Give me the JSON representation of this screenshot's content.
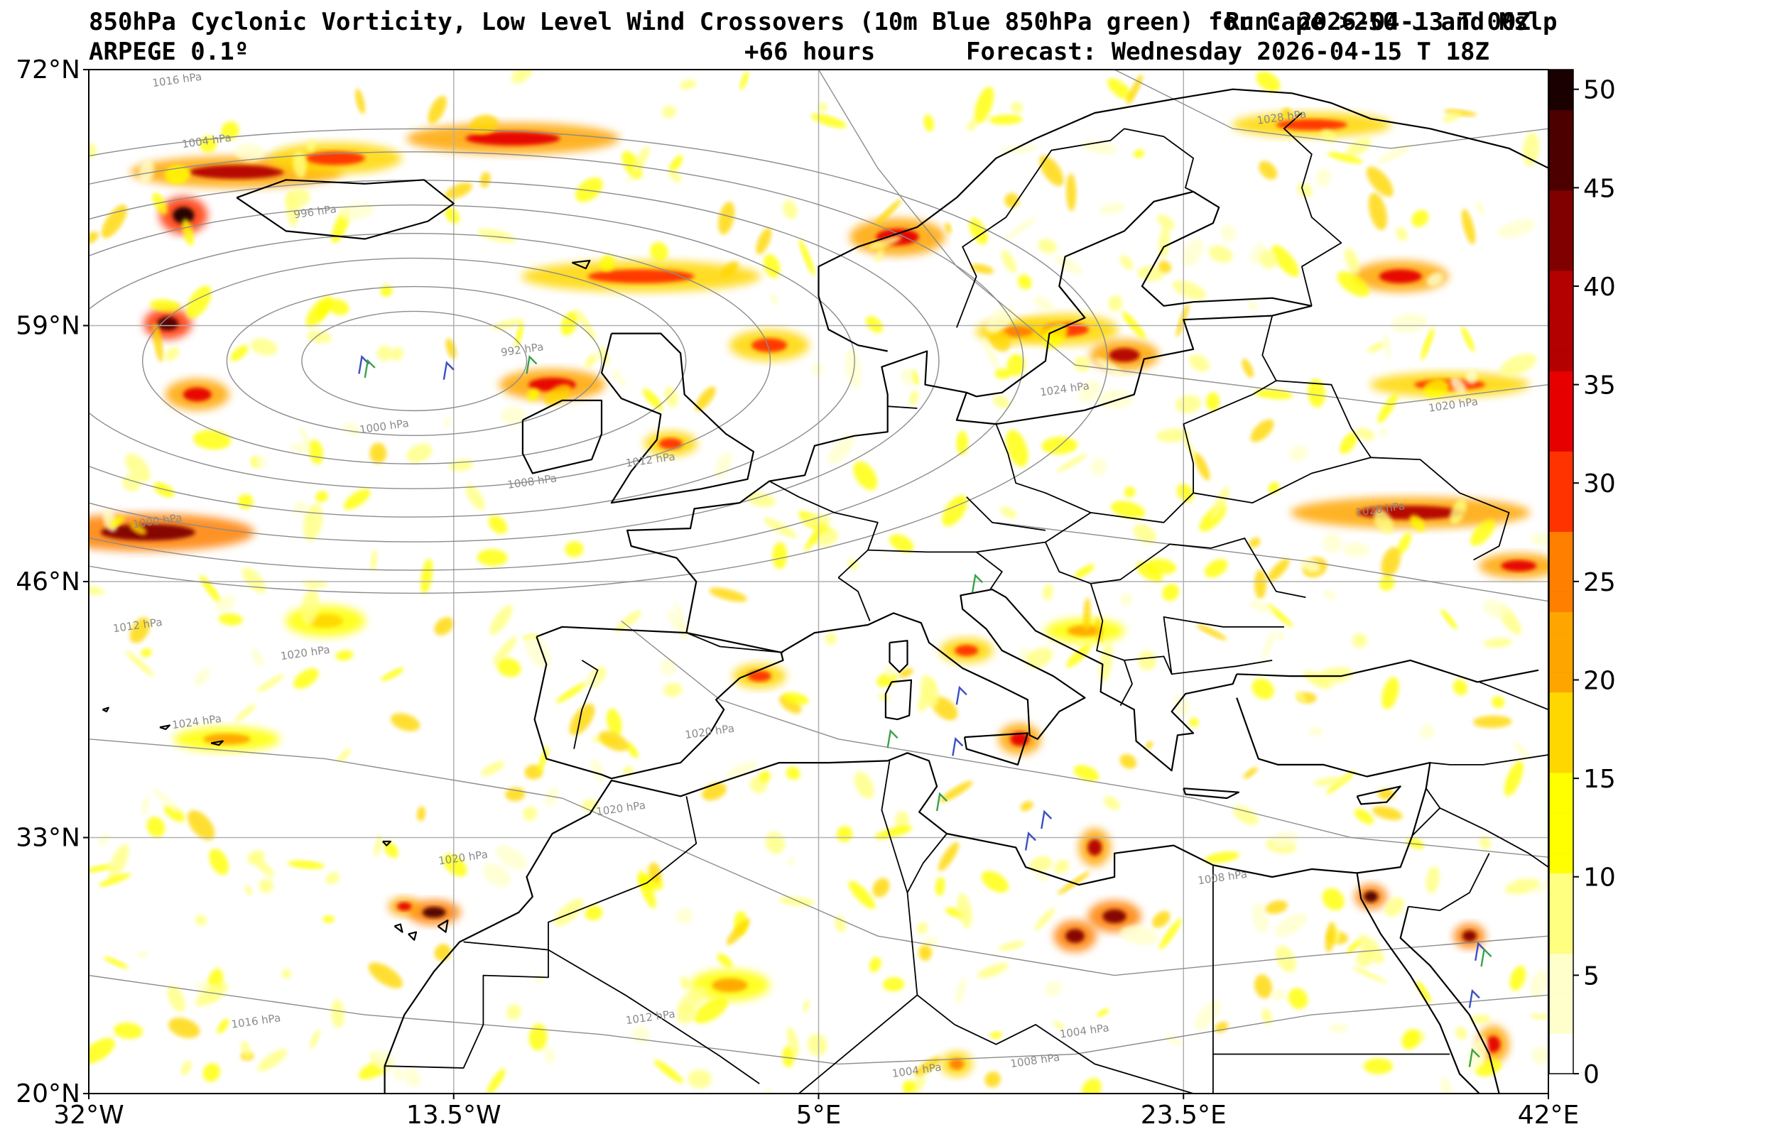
{
  "title": {
    "line1_left": "850hPa Cyclonic Vorticity, Low Level Wind Crossovers (10m Blue 850hPa green) for Cape >250 J and Mslp",
    "line1_right": "Run: 2026-04-13 T 00Z",
    "line2_left": "ARPEGE 0.1º",
    "line2_center": "+66 hours",
    "line2_right": "Forecast: Wednesday 2026-04-15 T 18Z"
  },
  "map": {
    "lon_range": [
      -32,
      42
    ],
    "lat_range": [
      20,
      72
    ],
    "lon_ticks": [
      {
        "value": -32,
        "label": "32°W"
      },
      {
        "value": -13.5,
        "label": "13.5°W"
      },
      {
        "value": 5,
        "label": "5°E"
      },
      {
        "value": 23.5,
        "label": "23.5°E"
      },
      {
        "value": 42,
        "label": "42°E"
      }
    ],
    "lat_ticks": [
      {
        "value": 72,
        "label": "72°N"
      },
      {
        "value": 59,
        "label": "59°N"
      },
      {
        "value": 46,
        "label": "46°N"
      },
      {
        "value": 33,
        "label": "33°N"
      },
      {
        "value": 20,
        "label": "20°N"
      }
    ],
    "grid": true,
    "colors": {
      "grid": "#b0b0b0",
      "coast": "#000000",
      "isobar": "#8c8c8c",
      "wind_10m": "#3a4fc4",
      "wind_850": "#3aa14a"
    },
    "colorbar": {
      "min": 0,
      "max": 51,
      "ticks": [
        0,
        5,
        10,
        15,
        20,
        25,
        30,
        35,
        40,
        45,
        50
      ],
      "colors": [
        "#ffffff",
        "#ffffcc",
        "#ffff80",
        "#ffff00",
        "#ffd700",
        "#ffa500",
        "#ff7f00",
        "#ff3300",
        "#e60000",
        "#b30000",
        "#800000",
        "#4d0000",
        "#1a0000"
      ]
    },
    "isobar_labels": [
      {
        "text": "1016 hPa",
        "lon": -27.5,
        "lat": 71.3
      },
      {
        "text": "1004 hPa",
        "lon": -26.0,
        "lat": 68.2
      },
      {
        "text": "1028 hPa",
        "lon": 28.5,
        "lat": 69.4
      },
      {
        "text": "996 hPa",
        "lon": -20.5,
        "lat": 64.6
      },
      {
        "text": "992 hPa",
        "lon": -10.0,
        "lat": 57.6
      },
      {
        "text": "1000 hPa",
        "lon": -17.0,
        "lat": 53.7
      },
      {
        "text": "1024 hPa",
        "lon": 17.5,
        "lat": 55.6
      },
      {
        "text": "1012 hPa",
        "lon": -3.5,
        "lat": 52.0
      },
      {
        "text": "1008 hPa",
        "lon": -9.5,
        "lat": 50.9
      },
      {
        "text": "1000 hPa",
        "lon": -28.5,
        "lat": 48.9
      },
      {
        "text": "1012 hPa",
        "lon": -29.5,
        "lat": 43.6
      },
      {
        "text": "1020 hPa",
        "lon": -21.0,
        "lat": 42.2
      },
      {
        "text": "1024 hPa",
        "lon": -26.5,
        "lat": 38.7
      },
      {
        "text": "1020 hPa",
        "lon": 37.2,
        "lat": 54.8
      },
      {
        "text": "1020 hPa",
        "lon": 33.5,
        "lat": 49.5
      },
      {
        "text": "1020 hPa",
        "lon": -0.5,
        "lat": 38.2
      },
      {
        "text": "1020 hPa",
        "lon": -5.0,
        "lat": 34.3
      },
      {
        "text": "1020 hPa",
        "lon": -13.0,
        "lat": 31.8
      },
      {
        "text": "1008 hPa",
        "lon": 25.5,
        "lat": 30.8
      },
      {
        "text": "1016 hPa",
        "lon": -23.5,
        "lat": 23.5
      },
      {
        "text": "1012 hPa",
        "lon": -3.5,
        "lat": 23.7
      },
      {
        "text": "1004 hPa",
        "lon": 10.0,
        "lat": 21.0
      },
      {
        "text": "1008 hPa",
        "lon": 16.0,
        "lat": 21.5
      },
      {
        "text": "1004 hPa",
        "lon": 18.5,
        "lat": 23.0
      }
    ],
    "barbs_10m": [
      {
        "lon": -18.3,
        "lat": 57.2
      },
      {
        "lon": -14.0,
        "lat": 56.9
      },
      {
        "lon": 12.0,
        "lat": 40.4
      },
      {
        "lon": 11.8,
        "lat": 37.8
      },
      {
        "lon": 16.3,
        "lat": 34.1
      },
      {
        "lon": 15.5,
        "lat": 33.0
      },
      {
        "lon": 38.3,
        "lat": 27.4
      },
      {
        "lon": 38.0,
        "lat": 25.0
      }
    ],
    "barbs_850": [
      {
        "lon": -18.0,
        "lat": 57.0
      },
      {
        "lon": -9.8,
        "lat": 57.2
      },
      {
        "lon": 12.8,
        "lat": 46.1
      },
      {
        "lon": 8.5,
        "lat": 38.2
      },
      {
        "lon": 11.0,
        "lat": 35.0
      },
      {
        "lon": 38.6,
        "lat": 27.1
      },
      {
        "lon": 38.0,
        "lat": 22.0
      }
    ],
    "vorticity_blobs": [
      [
        -27.2,
        64.6,
        0.9,
        0.6,
        0.98
      ],
      [
        -28.0,
        59.1,
        0.9,
        0.5,
        0.95
      ],
      [
        -26.5,
        55.5,
        1.2,
        0.5,
        0.7
      ],
      [
        -29.0,
        48.5,
        4.0,
        0.6,
        0.85
      ],
      [
        -24.5,
        66.8,
        4.0,
        0.5,
        0.75
      ],
      [
        -19.5,
        67.5,
        2.5,
        0.5,
        0.6
      ],
      [
        -10.5,
        68.5,
        4.0,
        0.5,
        0.65
      ],
      [
        -4.0,
        61.5,
        4.5,
        0.5,
        0.6
      ],
      [
        2.5,
        58.0,
        1.5,
        0.5,
        0.6
      ],
      [
        -8.5,
        56.0,
        2.0,
        0.5,
        0.7
      ],
      [
        -2.5,
        53.0,
        1.0,
        0.4,
        0.55
      ],
      [
        9.0,
        63.5,
        1.8,
        0.6,
        0.7
      ],
      [
        17.5,
        58.8,
        2.0,
        0.5,
        0.6
      ],
      [
        20.5,
        57.5,
        1.3,
        0.5,
        0.75
      ],
      [
        15.0,
        58.7,
        1.5,
        0.4,
        0.5
      ],
      [
        34.5,
        61.5,
        1.8,
        0.5,
        0.7
      ],
      [
        37.0,
        56.0,
        3.0,
        0.4,
        0.55
      ],
      [
        35.0,
        49.5,
        4.5,
        0.5,
        0.75
      ],
      [
        40.5,
        46.8,
        1.5,
        0.4,
        0.7
      ],
      [
        30.0,
        69.2,
        3.0,
        0.4,
        0.55
      ],
      [
        -14.5,
        29.2,
        1.0,
        0.4,
        0.9
      ],
      [
        -16.0,
        29.5,
        0.6,
        0.3,
        0.7
      ],
      [
        18.0,
        28.0,
        0.8,
        0.5,
        0.85
      ],
      [
        20.0,
        29.0,
        1.0,
        0.5,
        0.8
      ],
      [
        19.0,
        32.5,
        0.6,
        0.6,
        0.75
      ],
      [
        33.0,
        30.0,
        0.6,
        0.4,
        0.9
      ],
      [
        38.0,
        28.0,
        0.6,
        0.4,
        0.8
      ],
      [
        39.2,
        22.5,
        0.6,
        0.6,
        0.7
      ],
      [
        12.5,
        42.5,
        1.0,
        0.4,
        0.6
      ],
      [
        15.2,
        38.0,
        0.8,
        0.5,
        0.7
      ],
      [
        2.0,
        41.2,
        1.0,
        0.4,
        0.6
      ],
      [
        12.0,
        21.5,
        0.6,
        0.4,
        0.5
      ],
      [
        18.5,
        43.5,
        1.5,
        0.4,
        0.45
      ],
      [
        -25.0,
        38.0,
        2.0,
        0.4,
        0.4
      ],
      [
        -20.0,
        44.0,
        1.5,
        0.5,
        0.35
      ],
      [
        0.5,
        25.5,
        1.5,
        0.5,
        0.4
      ]
    ]
  }
}
